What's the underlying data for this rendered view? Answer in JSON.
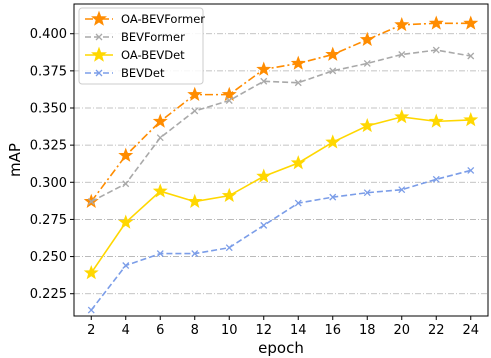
{
  "chart_data": {
    "type": "line",
    "title": "",
    "xlabel": "epoch",
    "ylabel": "mAP",
    "x": [
      2,
      4,
      6,
      8,
      10,
      12,
      14,
      16,
      18,
      20,
      22,
      24
    ],
    "xlim": [
      1,
      25
    ],
    "ylim": [
      0.21,
      0.42
    ],
    "yticks": [
      "0.225",
      "0.250",
      "0.275",
      "0.300",
      "0.325",
      "0.350",
      "0.375",
      "0.400"
    ],
    "xticks": [
      "2",
      "4",
      "6",
      "8",
      "10",
      "12",
      "14",
      "16",
      "18",
      "20",
      "22",
      "24"
    ],
    "grid": "horizontal dash-dot",
    "legend_position": "top-left",
    "series": [
      {
        "name": "OA-BEVFormer",
        "color": "#ff8c00",
        "line_style": "dash-dot",
        "marker": "star",
        "values": [
          0.287,
          0.318,
          0.341,
          0.359,
          0.359,
          0.376,
          0.38,
          0.386,
          0.396,
          0.406,
          0.407,
          0.407
        ]
      },
      {
        "name": "BEVFormer",
        "color": "#a9a9a9",
        "line_style": "dashed",
        "marker": "x",
        "values": [
          0.287,
          0.299,
          0.33,
          0.348,
          0.355,
          0.368,
          0.367,
          0.375,
          0.38,
          0.386,
          0.389,
          0.385
        ]
      },
      {
        "name": "OA-BEVDet",
        "color": "#ffd700",
        "line_style": "solid",
        "marker": "star",
        "values": [
          0.239,
          0.273,
          0.294,
          0.287,
          0.291,
          0.304,
          0.313,
          0.327,
          0.338,
          0.344,
          0.341,
          0.342
        ]
      },
      {
        "name": "BEVDet",
        "color": "#7b9de8",
        "line_style": "dashed",
        "marker": "x",
        "values": [
          0.214,
          0.244,
          0.252,
          0.252,
          0.256,
          0.271,
          0.286,
          0.29,
          0.293,
          0.295,
          0.302,
          0.308
        ]
      }
    ]
  }
}
